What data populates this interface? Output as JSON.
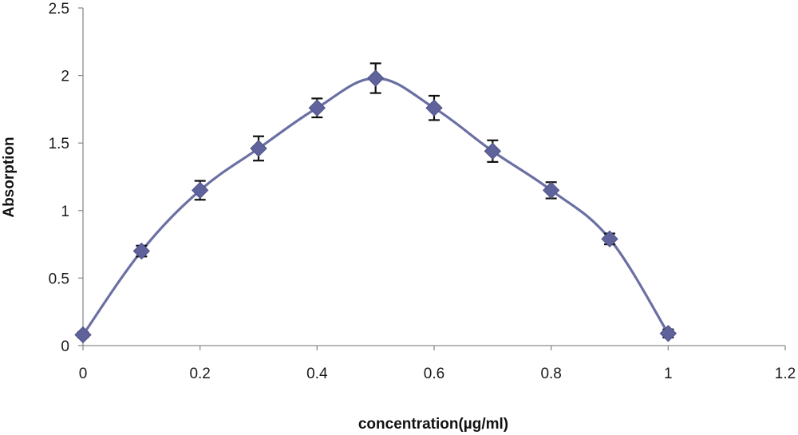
{
  "chart_data": {
    "type": "line",
    "title": "",
    "xlabel": "concentration(µg/ml)",
    "ylabel": "Absorption",
    "xlim": [
      0,
      1.2
    ],
    "ylim": [
      0,
      2.5
    ],
    "x_ticks": [
      0,
      0.2,
      0.4,
      0.6,
      0.8,
      1,
      1.2
    ],
    "x_tick_labels": [
      "0",
      "0.2",
      "0.4",
      "0.6",
      "0.8",
      "1",
      "1.2"
    ],
    "y_ticks": [
      0,
      0.5,
      1,
      1.5,
      2,
      2.5
    ],
    "y_tick_labels": [
      "0",
      "0.5",
      "1",
      "1.5",
      "2",
      "2.5"
    ],
    "grid": false,
    "legend": "none",
    "line_color": "#6b6fa3",
    "marker_color": "#5f629b",
    "marker": "diamond",
    "series": [
      {
        "x": [
          0,
          0.1,
          0.2,
          0.3,
          0.4,
          0.5,
          0.6,
          0.7,
          0.8,
          0.9,
          1.0
        ],
        "values": [
          0.08,
          0.7,
          1.15,
          1.46,
          1.76,
          1.98,
          1.76,
          1.44,
          1.15,
          0.79,
          0.09
        ],
        "error": [
          0.02,
          0.04,
          0.07,
          0.09,
          0.07,
          0.11,
          0.09,
          0.08,
          0.06,
          0.04,
          0.03
        ]
      }
    ]
  }
}
